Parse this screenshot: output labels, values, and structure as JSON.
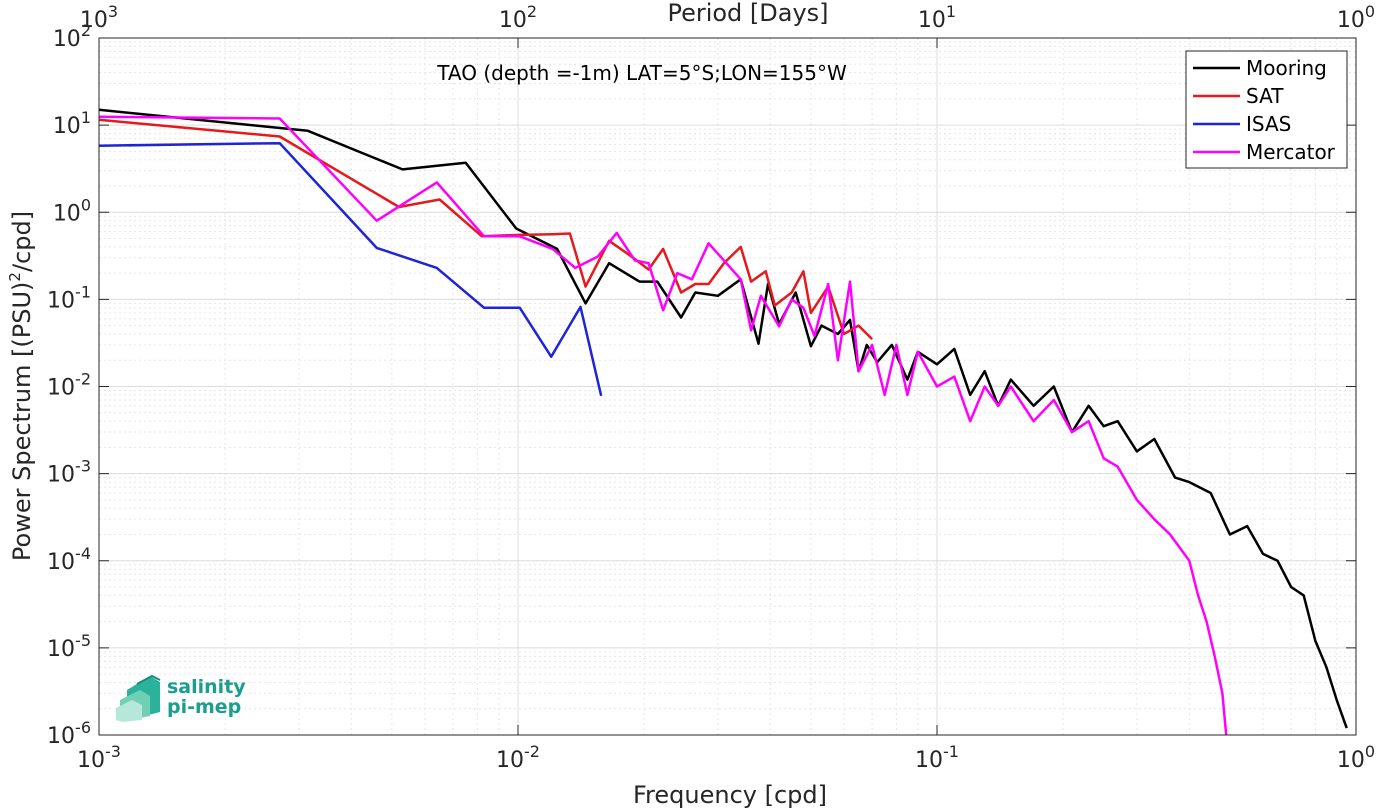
{
  "chart_data": {
    "type": "line",
    "title": "TAO (depth =-1m) LAT=5°S;LON=155°W",
    "xlabel": "Frequency [cpd]",
    "x2label": "Period [Days]",
    "ylabel": "Power Spectrum [(PSU)",
    "ylabel_sup": "2",
    "ylabel_tail": "/cpd]",
    "xscale": "log",
    "yscale": "log",
    "xlim": [
      0.001,
      1
    ],
    "ylim": [
      1e-06,
      100
    ],
    "grid": true,
    "legend_position": "top-right",
    "x_ticks": [
      {
        "value": 0.001,
        "base": "10",
        "exp": "-3"
      },
      {
        "value": 0.01,
        "base": "10",
        "exp": "-2"
      },
      {
        "value": 0.1,
        "base": "10",
        "exp": "-1"
      },
      {
        "value": 1,
        "base": "10",
        "exp": "0"
      }
    ],
    "x2_ticks": [
      {
        "value": 0.001,
        "base": "10",
        "exp": "3"
      },
      {
        "value": 0.01,
        "base": "10",
        "exp": "2"
      },
      {
        "value": 0.1,
        "base": "10",
        "exp": "1"
      },
      {
        "value": 1,
        "base": "10",
        "exp": "0"
      }
    ],
    "y_ticks": [
      {
        "value": 100,
        "base": "10",
        "exp": "2"
      },
      {
        "value": 10,
        "base": "10",
        "exp": "1"
      },
      {
        "value": 1,
        "base": "10",
        "exp": "0"
      },
      {
        "value": 0.1,
        "base": "10",
        "exp": "-1"
      },
      {
        "value": 0.01,
        "base": "10",
        "exp": "-2"
      },
      {
        "value": 0.001,
        "base": "10",
        "exp": "-3"
      },
      {
        "value": 0.0001,
        "base": "10",
        "exp": "-4"
      },
      {
        "value": 1e-05,
        "base": "10",
        "exp": "-5"
      },
      {
        "value": 1e-06,
        "base": "10",
        "exp": "-6"
      }
    ],
    "series": [
      {
        "name": "Mooring",
        "color": "#000000",
        "points": [
          [
            0.001,
            15
          ],
          [
            0.00315,
            8.6
          ],
          [
            0.0053,
            3.1
          ],
          [
            0.0075,
            3.7
          ],
          [
            0.0099,
            0.65
          ],
          [
            0.0124,
            0.38
          ],
          [
            0.0145,
            0.09
          ],
          [
            0.0165,
            0.26
          ],
          [
            0.0195,
            0.16
          ],
          [
            0.0215,
            0.16
          ],
          [
            0.0245,
            0.062
          ],
          [
            0.0265,
            0.12
          ],
          [
            0.03,
            0.11
          ],
          [
            0.034,
            0.17
          ],
          [
            0.0375,
            0.031
          ],
          [
            0.0395,
            0.15
          ],
          [
            0.042,
            0.052
          ],
          [
            0.046,
            0.12
          ],
          [
            0.05,
            0.029
          ],
          [
            0.053,
            0.05
          ],
          [
            0.058,
            0.04
          ],
          [
            0.062,
            0.058
          ],
          [
            0.065,
            0.015
          ],
          [
            0.068,
            0.03
          ],
          [
            0.072,
            0.019
          ],
          [
            0.078,
            0.03
          ],
          [
            0.085,
            0.012
          ],
          [
            0.09,
            0.025
          ],
          [
            0.1,
            0.018
          ],
          [
            0.11,
            0.027
          ],
          [
            0.12,
            0.008
          ],
          [
            0.13,
            0.015
          ],
          [
            0.14,
            0.006
          ],
          [
            0.15,
            0.012
          ],
          [
            0.17,
            0.006
          ],
          [
            0.19,
            0.01
          ],
          [
            0.21,
            0.003
          ],
          [
            0.23,
            0.006
          ],
          [
            0.25,
            0.0035
          ],
          [
            0.27,
            0.004
          ],
          [
            0.3,
            0.0018
          ],
          [
            0.33,
            0.0025
          ],
          [
            0.37,
            0.0009
          ],
          [
            0.4,
            0.0008
          ],
          [
            0.45,
            0.0006
          ],
          [
            0.5,
            0.0002
          ],
          [
            0.55,
            0.00025
          ],
          [
            0.6,
            0.00012
          ],
          [
            0.65,
            0.0001
          ],
          [
            0.7,
            5e-05
          ],
          [
            0.75,
            4e-05
          ],
          [
            0.8,
            1.2e-05
          ],
          [
            0.85,
            6e-06
          ],
          [
            0.9,
            2.5e-06
          ],
          [
            0.95,
            1.2e-06
          ]
        ]
      },
      {
        "name": "SAT",
        "color": "#e41a1c",
        "points": [
          [
            0.001,
            11.5
          ],
          [
            0.0027,
            7.4
          ],
          [
            0.0052,
            1.15
          ],
          [
            0.0065,
            1.4
          ],
          [
            0.0082,
            0.53
          ],
          [
            0.0101,
            0.55
          ],
          [
            0.0121,
            0.56
          ],
          [
            0.0133,
            0.57
          ],
          [
            0.0145,
            0.14
          ],
          [
            0.0165,
            0.47
          ],
          [
            0.0185,
            0.32
          ],
          [
            0.0205,
            0.22
          ],
          [
            0.0222,
            0.38
          ],
          [
            0.0245,
            0.12
          ],
          [
            0.0265,
            0.15
          ],
          [
            0.0285,
            0.15
          ],
          [
            0.031,
            0.26
          ],
          [
            0.034,
            0.4
          ],
          [
            0.036,
            0.16
          ],
          [
            0.039,
            0.21
          ],
          [
            0.041,
            0.085
          ],
          [
            0.045,
            0.12
          ],
          [
            0.048,
            0.21
          ],
          [
            0.05,
            0.07
          ],
          [
            0.055,
            0.14
          ],
          [
            0.06,
            0.04
          ],
          [
            0.065,
            0.05
          ],
          [
            0.07,
            0.035
          ]
        ]
      },
      {
        "name": "ISAS",
        "color": "#1f24d6",
        "points": [
          [
            0.001,
            5.8
          ],
          [
            0.0027,
            6.2
          ],
          [
            0.0046,
            0.39
          ],
          [
            0.0064,
            0.23
          ],
          [
            0.0083,
            0.08
          ],
          [
            0.0101,
            0.08
          ],
          [
            0.012,
            0.022
          ],
          [
            0.0141,
            0.082
          ],
          [
            0.0158,
            0.0078
          ]
        ]
      },
      {
        "name": "Mercator",
        "color": "#ff00ff",
        "points": [
          [
            0.001,
            12.5
          ],
          [
            0.0027,
            11.9
          ],
          [
            0.0046,
            0.8
          ],
          [
            0.0064,
            2.2
          ],
          [
            0.0083,
            0.53
          ],
          [
            0.0101,
            0.53
          ],
          [
            0.0121,
            0.38
          ],
          [
            0.0137,
            0.23
          ],
          [
            0.0155,
            0.31
          ],
          [
            0.0172,
            0.58
          ],
          [
            0.019,
            0.28
          ],
          [
            0.0205,
            0.26
          ],
          [
            0.0222,
            0.075
          ],
          [
            0.024,
            0.2
          ],
          [
            0.026,
            0.17
          ],
          [
            0.0285,
            0.44
          ],
          [
            0.031,
            0.28
          ],
          [
            0.034,
            0.17
          ],
          [
            0.036,
            0.044
          ],
          [
            0.038,
            0.11
          ],
          [
            0.042,
            0.049
          ],
          [
            0.045,
            0.1
          ],
          [
            0.048,
            0.08
          ],
          [
            0.051,
            0.038
          ],
          [
            0.055,
            0.15
          ],
          [
            0.058,
            0.02
          ],
          [
            0.062,
            0.16
          ],
          [
            0.065,
            0.015
          ],
          [
            0.07,
            0.03
          ],
          [
            0.075,
            0.008
          ],
          [
            0.08,
            0.03
          ],
          [
            0.085,
            0.008
          ],
          [
            0.09,
            0.025
          ],
          [
            0.1,
            0.01
          ],
          [
            0.11,
            0.013
          ],
          [
            0.12,
            0.004
          ],
          [
            0.13,
            0.01
          ],
          [
            0.14,
            0.006
          ],
          [
            0.15,
            0.01
          ],
          [
            0.17,
            0.004
          ],
          [
            0.19,
            0.007
          ],
          [
            0.21,
            0.003
          ],
          [
            0.23,
            0.004
          ],
          [
            0.25,
            0.0015
          ],
          [
            0.27,
            0.0012
          ],
          [
            0.3,
            0.0005
          ],
          [
            0.33,
            0.0003
          ],
          [
            0.36,
            0.0002
          ],
          [
            0.4,
            0.0001
          ],
          [
            0.42,
            4e-05
          ],
          [
            0.44,
            2e-05
          ],
          [
            0.46,
            8e-06
          ],
          [
            0.48,
            3e-06
          ],
          [
            0.49,
            1e-06
          ]
        ]
      }
    ]
  },
  "logo": {
    "line1": "salinity",
    "line2": "pi-mep"
  }
}
